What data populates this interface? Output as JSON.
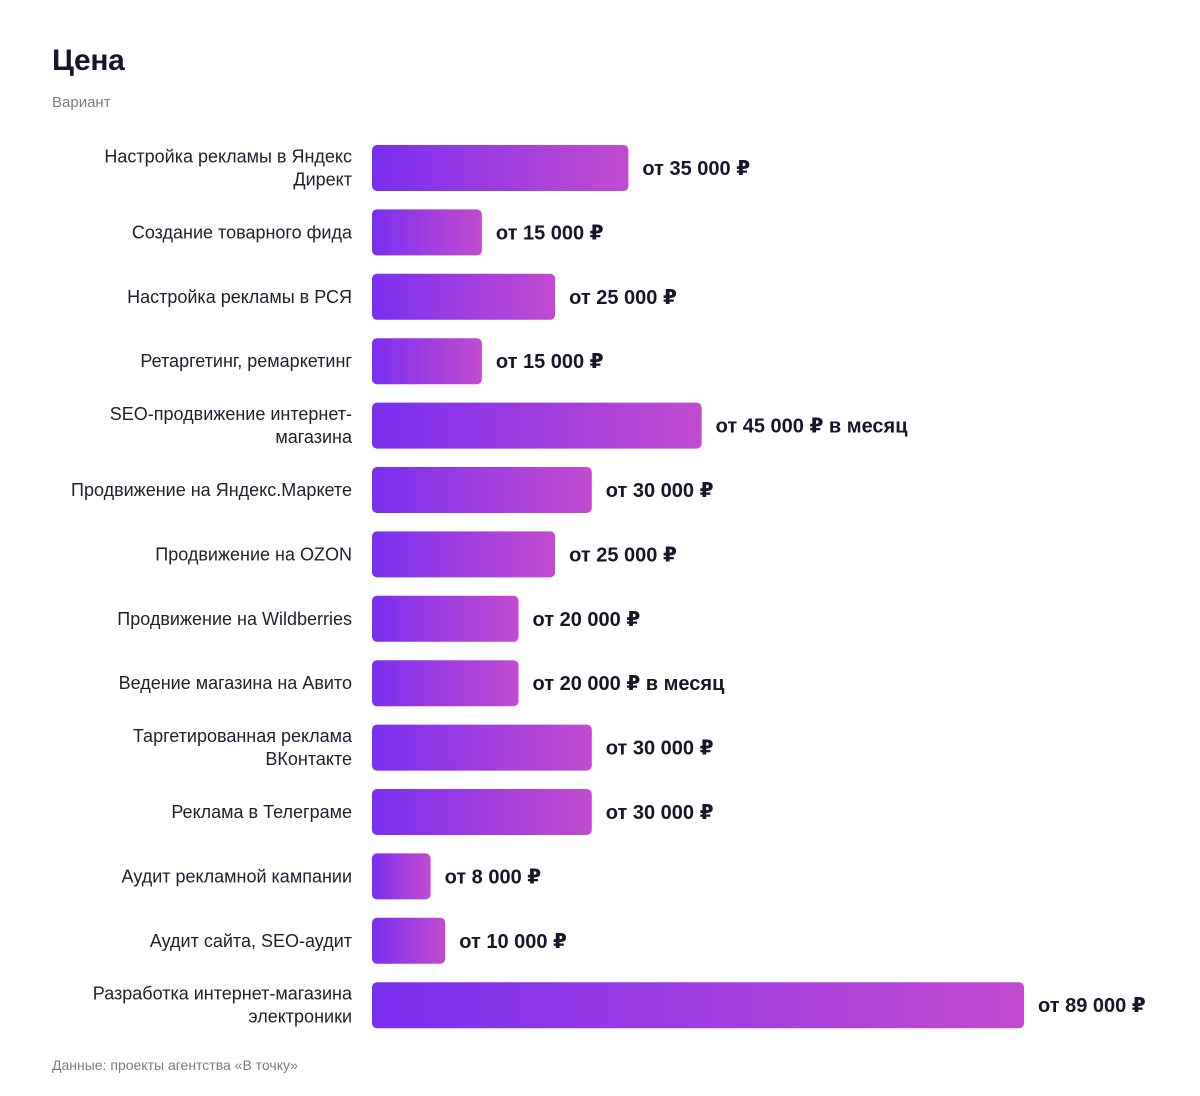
{
  "chart_data": {
    "type": "bar",
    "orientation": "horizontal",
    "title": "Цена",
    "subtitle": "Вариант",
    "source": "Данные: проекты агентства «В точку»",
    "categories": [
      "Настройка рекламы в Яндекс Директ",
      "Создание товарного фида",
      "Настройка рекламы в РСЯ",
      "Ретаргетинг, ремаркетинг",
      "SEO-продвижение интернет-магазина",
      "Продвижение на Яндекс.Маркете",
      "Продвижение на OZON",
      "Продвижение на Wildberries",
      "Ведение магазина на Авито",
      "Таргетированная реклама ВКонтакте",
      "Реклама в Телеграме",
      "Аудит рекламной кампании",
      "Аудит сайта, SEO-аудит",
      "Разработка интернет-магазина электроники"
    ],
    "category_lines": [
      [
        "Настройка рекламы в Яндекс",
        "Директ"
      ],
      [
        "Создание товарного фида"
      ],
      [
        "Настройка рекламы в РСЯ"
      ],
      [
        "Ретаргетинг, ремаркетинг"
      ],
      [
        "SEO-продвижение интернет-",
        "магазина"
      ],
      [
        "Продвижение на Яндекс.Маркете"
      ],
      [
        "Продвижение на OZON"
      ],
      [
        "Продвижение на Wildberries"
      ],
      [
        "Ведение магазина на Авито"
      ],
      [
        "Таргетированная реклама",
        "ВКонтакте"
      ],
      [
        "Реклама в Телеграме"
      ],
      [
        "Аудит рекламной кампании"
      ],
      [
        "Аудит сайта, SEO-аудит"
      ],
      [
        "Разработка интернет-магазина",
        "электроники"
      ]
    ],
    "values": [
      35000,
      15000,
      25000,
      15000,
      45000,
      30000,
      25000,
      20000,
      20000,
      30000,
      30000,
      8000,
      10000,
      89000
    ],
    "value_labels": [
      "от 35 000 ₽",
      "от 15 000 ₽",
      "от 25 000 ₽",
      "от 15 000 ₽",
      "от 45 000 ₽ в месяц",
      "от 30 000 ₽",
      "от 25 000 ₽",
      "от 20 000 ₽",
      "от 20 000 ₽ в месяц",
      "от 30 000 ₽",
      "от 30 000 ₽",
      "от 8 000 ₽",
      "от 10 000 ₽",
      "от 89 000 ₽"
    ],
    "xlim": [
      0,
      89000
    ],
    "grid": false,
    "colors": {
      "bar_start": "#7a2ff0",
      "bar_end": "#c24bd0",
      "text": "#16162a"
    }
  }
}
